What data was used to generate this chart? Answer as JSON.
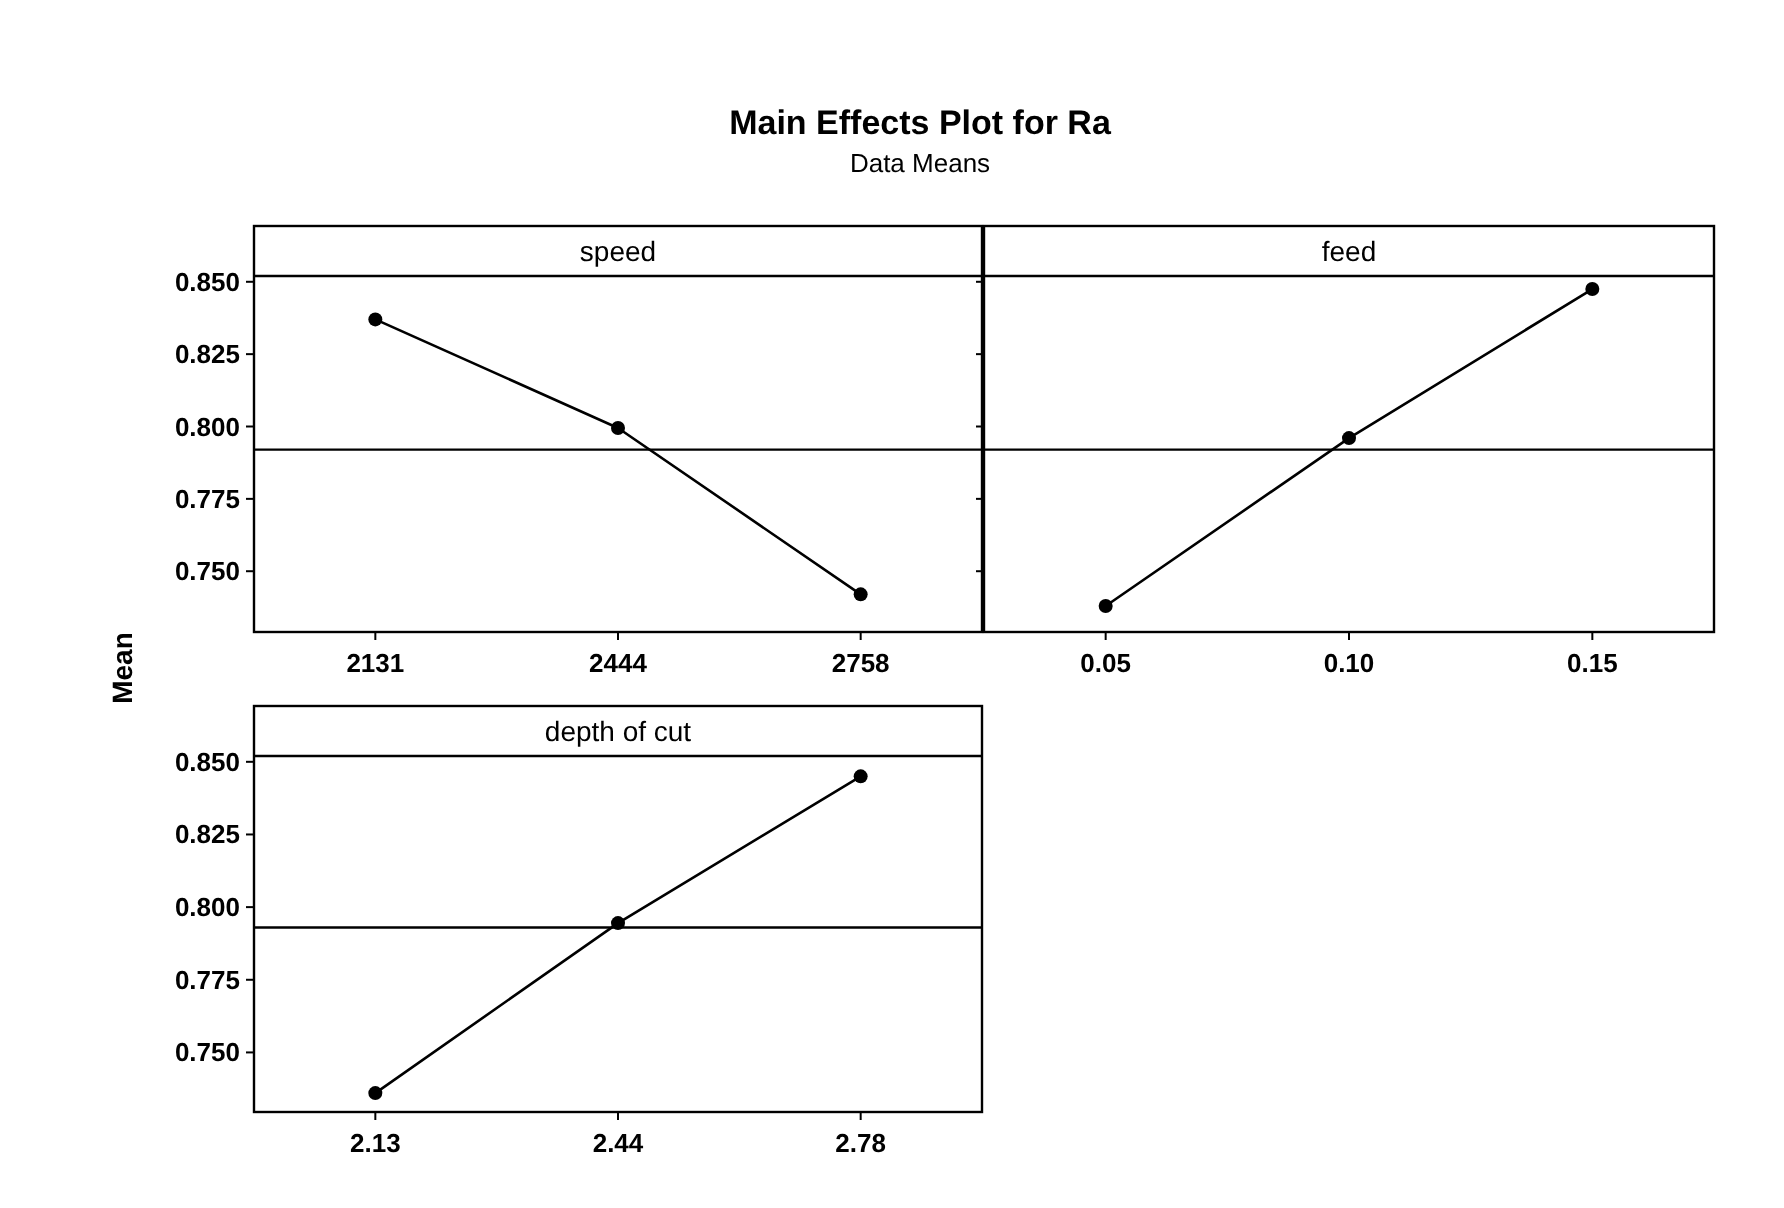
{
  "chart_data": [
    {
      "type": "line",
      "title": "speed",
      "annotations": [
        "Main Effects Plot for Ra",
        "Data Means"
      ],
      "ylabel": "Mean",
      "categories": [
        "2131",
        "2444",
        "2758"
      ],
      "series": [
        {
          "color": "#000000",
          "values": [
            0.837,
            0.7995,
            0.742
          ]
        }
      ],
      "ylim": [
        0.729,
        0.852
      ],
      "yticks": [
        {
          "value": 0.75,
          "label": "0.750"
        },
        {
          "value": 0.775,
          "label": "0.775"
        },
        {
          "value": 0.8,
          "label": "0.800"
        },
        {
          "value": 0.825,
          "label": "0.825"
        },
        {
          "value": 0.85,
          "label": "0.850"
        }
      ],
      "ref_lines": [
        {
          "axis": "y",
          "value": 0.792
        }
      ],
      "marker": "circle",
      "grid": false
    },
    {
      "type": "line",
      "title": "feed",
      "categories": [
        "0.05",
        "0.10",
        "0.15"
      ],
      "series": [
        {
          "color": "#000000",
          "values": [
            0.738,
            0.796,
            0.8475
          ]
        }
      ],
      "ylim": [
        0.729,
        0.852
      ],
      "yticks": [
        {
          "value": 0.75,
          "label": null
        },
        {
          "value": 0.775,
          "label": null
        },
        {
          "value": 0.8,
          "label": null
        },
        {
          "value": 0.825,
          "label": null
        },
        {
          "value": 0.85,
          "label": null
        }
      ],
      "ref_lines": [
        {
          "axis": "y",
          "value": 0.792
        }
      ],
      "marker": "circle",
      "grid": false,
      "tick_labels": "x"
    },
    {
      "type": "line",
      "title": "depth of cut",
      "categories": [
        "2.13",
        "2.44",
        "2.78"
      ],
      "series": [
        {
          "color": "#000000",
          "values": [
            0.736,
            0.7945,
            0.845
          ]
        }
      ],
      "ylim": [
        0.7295,
        0.852
      ],
      "yticks": [
        {
          "value": 0.75,
          "label": "0.750"
        },
        {
          "value": 0.775,
          "label": "0.775"
        },
        {
          "value": 0.8,
          "label": "0.800"
        },
        {
          "value": 0.825,
          "label": "0.825"
        },
        {
          "value": 0.85,
          "label": "0.850"
        }
      ],
      "ref_lines": [
        {
          "axis": "y",
          "value": 0.793
        }
      ],
      "marker": "circle",
      "grid": false
    }
  ]
}
